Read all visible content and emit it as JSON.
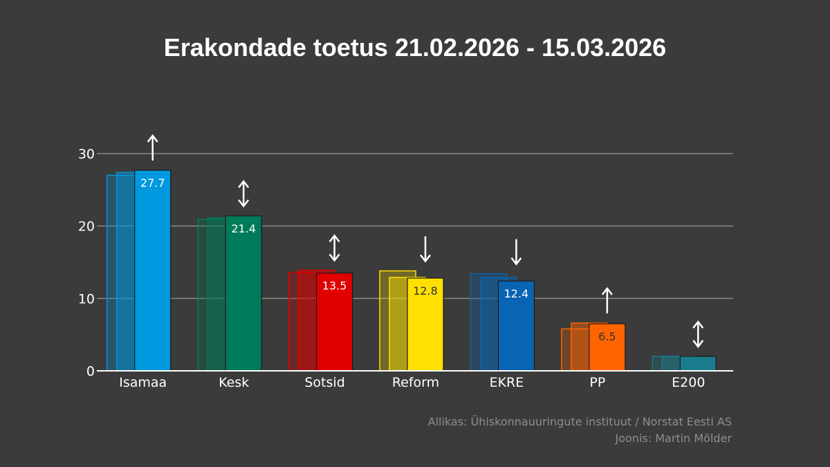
{
  "chart_data": {
    "type": "bar",
    "title": "Erakondade toetus 21.02.2026 - 15.03.2026",
    "xlabel": "",
    "ylabel": "",
    "ylim": [
      0,
      30
    ],
    "yticks": [
      0,
      10,
      20,
      30
    ],
    "grid": true,
    "categories": [
      "Isamaa",
      "Kesk",
      "Sotsid",
      "Reform",
      "EKRE",
      "PP",
      "E200"
    ],
    "series": [
      {
        "values": [
          27.0,
          20.9,
          13.6,
          13.8,
          13.4,
          5.8,
          2.0
        ]
      },
      {
        "values": [
          27.4,
          21.1,
          13.9,
          12.9,
          12.9,
          6.6,
          2.0
        ]
      },
      {
        "values": [
          27.7,
          21.4,
          13.5,
          12.8,
          12.4,
          6.5,
          2.0
        ]
      }
    ],
    "data_labels": [
      "27.7",
      "21.4",
      "13.5",
      "12.8",
      "12.4",
      "6.5",
      ""
    ],
    "trend_arrows": [
      "up",
      "both",
      "both",
      "down",
      "down",
      "up",
      "both"
    ],
    "colors": [
      "#0099e0",
      "#007b5a",
      "#e00000",
      "#ffe000",
      "#0a64b4",
      "#ff6400",
      "#1a7b8c"
    ],
    "label_colors": [
      "#ffffff",
      "#ffffff",
      "#ffffff",
      "#333333",
      "#ffffff",
      "#333333",
      "#ffffff"
    ]
  },
  "footer": {
    "source": "Allikas: Ühiskonnauuringute instituut / Norstat Eesti AS",
    "credit": "Joonis: Martin Mölder"
  }
}
